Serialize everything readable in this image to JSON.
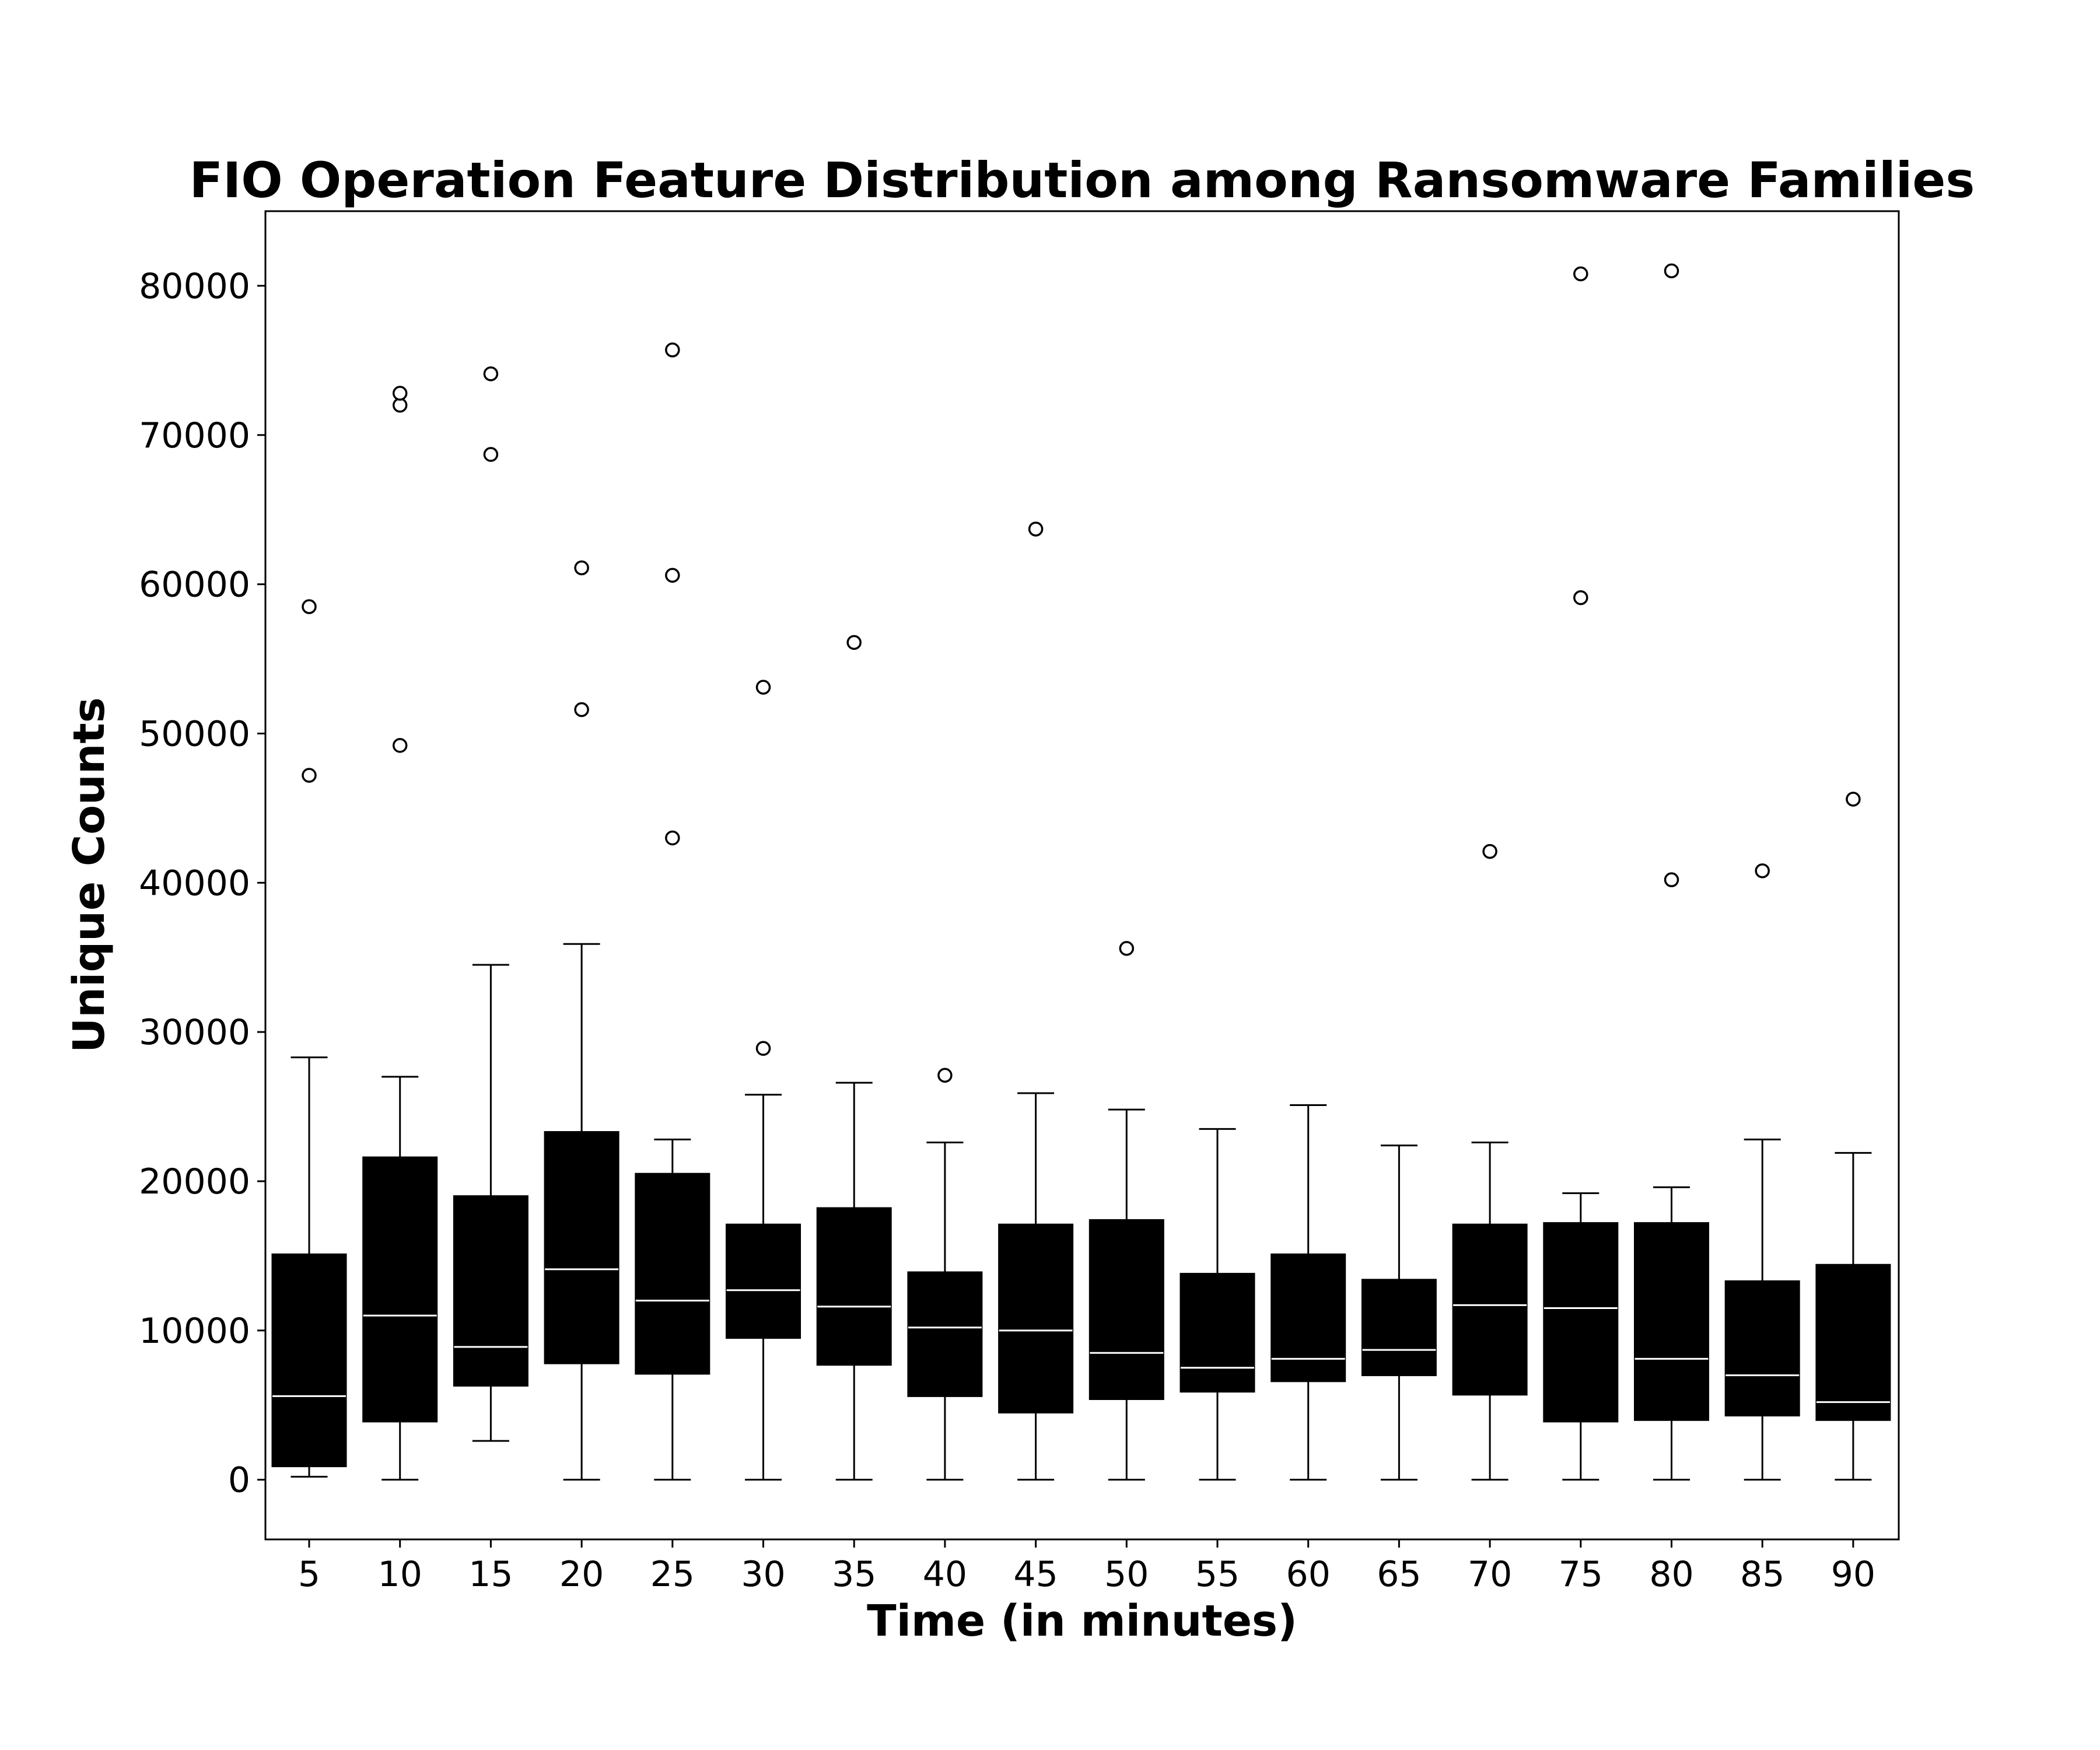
{
  "chart_data": {
    "type": "box",
    "title": "FIO Operation Feature Distribution among Ransomware Families",
    "xlabel": "Time (in minutes)",
    "ylabel": "Unique Counts",
    "ylim": [
      -4000,
      85000
    ],
    "yticks": [
      0,
      10000,
      20000,
      30000,
      40000,
      50000,
      60000,
      70000,
      80000
    ],
    "grid": false,
    "box_color": "#000000",
    "median_color": "#ffffff",
    "categories": [
      "5",
      "10",
      "15",
      "20",
      "25",
      "30",
      "35",
      "40",
      "45",
      "50",
      "55",
      "60",
      "65",
      "70",
      "75",
      "80",
      "85",
      "90"
    ],
    "boxes": [
      {
        "whisker_low": 200,
        "q1": 900,
        "median": 5600,
        "q3": 15100,
        "whisker_high": 28300,
        "outliers": [
          47200,
          58500
        ]
      },
      {
        "whisker_low": 0,
        "q1": 3900,
        "median": 11000,
        "q3": 21600,
        "whisker_high": 27000,
        "outliers": [
          49200,
          72000,
          72800
        ]
      },
      {
        "whisker_low": 2600,
        "q1": 6300,
        "median": 8900,
        "q3": 19000,
        "whisker_high": 34500,
        "outliers": [
          68700,
          74100
        ]
      },
      {
        "whisker_low": 0,
        "q1": 7800,
        "median": 14100,
        "q3": 23300,
        "whisker_high": 35900,
        "outliers": [
          51600,
          61100
        ]
      },
      {
        "whisker_low": 0,
        "q1": 7100,
        "median": 12000,
        "q3": 20500,
        "whisker_high": 22800,
        "outliers": [
          43000,
          60600,
          75700
        ]
      },
      {
        "whisker_low": 0,
        "q1": 9500,
        "median": 12700,
        "q3": 17100,
        "whisker_high": 25800,
        "outliers": [
          28900,
          53100
        ]
      },
      {
        "whisker_low": 0,
        "q1": 7700,
        "median": 11600,
        "q3": 18200,
        "whisker_high": 26600,
        "outliers": [
          56100
        ]
      },
      {
        "whisker_low": 0,
        "q1": 5600,
        "median": 10200,
        "q3": 13900,
        "whisker_high": 22600,
        "outliers": [
          27100
        ]
      },
      {
        "whisker_low": 0,
        "q1": 4500,
        "median": 10000,
        "q3": 17100,
        "whisker_high": 25900,
        "outliers": [
          63700
        ]
      },
      {
        "whisker_low": 0,
        "q1": 5400,
        "median": 8500,
        "q3": 17400,
        "whisker_high": 24800,
        "outliers": [
          35600
        ]
      },
      {
        "whisker_low": 0,
        "q1": 5900,
        "median": 7500,
        "q3": 13800,
        "whisker_high": 23500,
        "outliers": []
      },
      {
        "whisker_low": 0,
        "q1": 6600,
        "median": 8100,
        "q3": 15100,
        "whisker_high": 25100,
        "outliers": []
      },
      {
        "whisker_low": 0,
        "q1": 7000,
        "median": 8700,
        "q3": 13400,
        "whisker_high": 22400,
        "outliers": []
      },
      {
        "whisker_low": 0,
        "q1": 5700,
        "median": 11700,
        "q3": 17100,
        "whisker_high": 22600,
        "outliers": [
          42100
        ]
      },
      {
        "whisker_low": 0,
        "q1": 3900,
        "median": 11500,
        "q3": 17200,
        "whisker_high": 19200,
        "outliers": [
          59100,
          80800
        ]
      },
      {
        "whisker_low": 0,
        "q1": 4000,
        "median": 8100,
        "q3": 17200,
        "whisker_high": 19600,
        "outliers": [
          40200,
          81000
        ]
      },
      {
        "whisker_low": 0,
        "q1": 4300,
        "median": 7000,
        "q3": 13300,
        "whisker_high": 22800,
        "outliers": [
          40800
        ]
      },
      {
        "whisker_low": 0,
        "q1": 4000,
        "median": 5200,
        "q3": 14400,
        "whisker_high": 21900,
        "outliers": [
          45600
        ]
      }
    ]
  }
}
